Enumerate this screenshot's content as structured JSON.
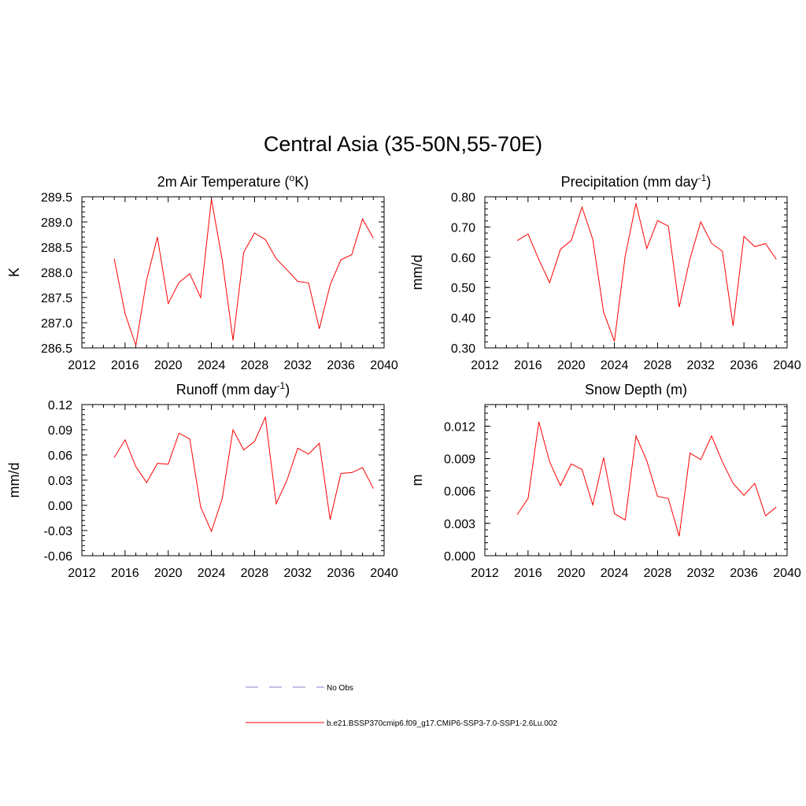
{
  "main_title": "Central Asia (35-50N,55-70E)",
  "legend": [
    {
      "label": "No Obs",
      "color": "#9a9ad8",
      "dashed": true
    },
    {
      "label": "b.e21.BSSP370cmip6.f09_g17.CMIP6-SSP3-7.0-SSP1-2.6Lu.002",
      "color": "#ff0000",
      "dashed": false
    }
  ],
  "chart_data": [
    {
      "type": "line",
      "title": "2m Air Temperature (",
      "title_sup": "o",
      "title_tail": "K)",
      "ylabel": "K",
      "xlim": [
        2012,
        2040
      ],
      "xticks": [
        2012,
        2016,
        2020,
        2024,
        2028,
        2032,
        2036,
        2040
      ],
      "ylim": [
        286.5,
        289.5
      ],
      "yticks": [
        286.5,
        287.0,
        287.5,
        288.0,
        288.5,
        289.0,
        289.5
      ],
      "ytick_labels": [
        "286.5",
        "287.0",
        "287.5",
        "288.0",
        "288.5",
        "289.0",
        "289.5"
      ],
      "series": [
        {
          "color": "#ff0000",
          "x": [
            2015,
            2016,
            2017,
            2018,
            2019,
            2020,
            2021,
            2022,
            2023,
            2024,
            2025,
            2026,
            2027,
            2028,
            2029,
            2030,
            2031,
            2032,
            2033,
            2034,
            2035,
            2036,
            2037,
            2038,
            2039
          ],
          "y": [
            288.27,
            287.18,
            286.55,
            287.85,
            288.7,
            287.38,
            287.8,
            287.97,
            287.5,
            289.45,
            288.25,
            286.65,
            288.4,
            288.78,
            288.65,
            288.27,
            288.05,
            287.82,
            287.79,
            286.88,
            287.75,
            288.25,
            288.35,
            289.06,
            288.68
          ]
        }
      ]
    },
    {
      "type": "line",
      "title": "Precipitation (mm day",
      "title_sup": "-1",
      "title_tail": ")",
      "ylabel": "mm/d",
      "xlim": [
        2012,
        2040
      ],
      "xticks": [
        2012,
        2016,
        2020,
        2024,
        2028,
        2032,
        2036,
        2040
      ],
      "ylim": [
        0.3,
        0.8
      ],
      "yticks": [
        0.3,
        0.4,
        0.5,
        0.6,
        0.7,
        0.8
      ],
      "ytick_labels": [
        "0.30",
        "0.40",
        "0.50",
        "0.60",
        "0.70",
        "0.80"
      ],
      "series": [
        {
          "color": "#ff0000",
          "x": [
            2015,
            2016,
            2017,
            2018,
            2019,
            2020,
            2021,
            2022,
            2023,
            2024,
            2025,
            2026,
            2027,
            2028,
            2029,
            2030,
            2031,
            2032,
            2033,
            2034,
            2035,
            2036,
            2037,
            2038,
            2039
          ],
          "y": [
            0.655,
            0.677,
            0.592,
            0.516,
            0.626,
            0.655,
            0.766,
            0.659,
            0.418,
            0.322,
            0.604,
            0.778,
            0.629,
            0.721,
            0.703,
            0.435,
            0.595,
            0.717,
            0.646,
            0.62,
            0.373,
            0.669,
            0.635,
            0.645,
            0.593
          ]
        }
      ]
    },
    {
      "type": "line",
      "title": "Runoff (mm day",
      "title_sup": "-1",
      "title_tail": ")",
      "ylabel": "mm/d",
      "xlim": [
        2012,
        2040
      ],
      "xticks": [
        2012,
        2016,
        2020,
        2024,
        2028,
        2032,
        2036,
        2040
      ],
      "ylim": [
        -0.06,
        0.12
      ],
      "yticks": [
        -0.06,
        -0.03,
        0.0,
        0.03,
        0.06,
        0.09,
        0.12
      ],
      "ytick_labels": [
        "-0.06",
        "-0.03",
        "0.00",
        "0.03",
        "0.06",
        "0.09",
        "0.12"
      ],
      "series": [
        {
          "color": "#ff0000",
          "x": [
            2015,
            2016,
            2017,
            2018,
            2019,
            2020,
            2021,
            2022,
            2023,
            2024,
            2025,
            2026,
            2027,
            2028,
            2029,
            2030,
            2031,
            2032,
            2033,
            2034,
            2035,
            2036,
            2037,
            2038,
            2039
          ],
          "y": [
            0.057,
            0.078,
            0.046,
            0.027,
            0.05,
            0.049,
            0.086,
            0.079,
            -0.002,
            -0.031,
            0.008,
            0.09,
            0.066,
            0.076,
            0.105,
            0.002,
            0.03,
            0.068,
            0.061,
            0.074,
            -0.017,
            0.038,
            0.039,
            0.045,
            0.02
          ]
        }
      ]
    },
    {
      "type": "line",
      "title": "Snow Depth (m)",
      "title_sup": "",
      "title_tail": "",
      "ylabel": "m",
      "xlim": [
        2012,
        2040
      ],
      "xticks": [
        2012,
        2016,
        2020,
        2024,
        2028,
        2032,
        2036,
        2040
      ],
      "ylim": [
        0.0,
        0.014
      ],
      "yticks": [
        0.0,
        0.003,
        0.006,
        0.009,
        0.012
      ],
      "ytick_labels": [
        "0.000",
        "0.003",
        "0.006",
        "0.009",
        "0.012"
      ],
      "series": [
        {
          "color": "#ff0000",
          "x": [
            2015,
            2016,
            2017,
            2018,
            2019,
            2020,
            2021,
            2022,
            2023,
            2024,
            2025,
            2026,
            2027,
            2028,
            2029,
            2030,
            2031,
            2032,
            2033,
            2034,
            2035,
            2036,
            2037,
            2038,
            2039
          ],
          "y": [
            0.0038,
            0.0053,
            0.0124,
            0.0087,
            0.0065,
            0.0085,
            0.008,
            0.0047,
            0.0091,
            0.0039,
            0.0033,
            0.0111,
            0.0088,
            0.0055,
            0.0053,
            0.0018,
            0.0095,
            0.0089,
            0.0111,
            0.0087,
            0.0067,
            0.0056,
            0.0067,
            0.0037,
            0.0045
          ]
        }
      ]
    }
  ]
}
